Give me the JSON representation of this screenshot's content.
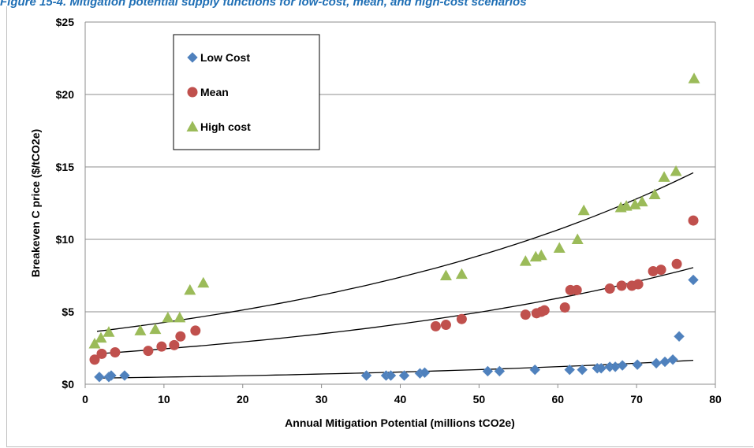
{
  "caption": "Figure 15-4. Mitigation potential supply functions for low-cost, mean, and high-cost scenarios",
  "chart_data": {
    "type": "scatter",
    "xlabel": "Annual Mitigation Potential (millions tCO2e)",
    "ylabel": "Breakeven C price ($/tCO2e)",
    "xlim": [
      0,
      80
    ],
    "ylim": [
      0,
      25
    ],
    "x_ticks": [
      "0",
      "10",
      "20",
      "30",
      "40",
      "50",
      "60",
      "70",
      "80"
    ],
    "y_ticks": [
      "$0",
      "$5",
      "$10",
      "$15",
      "$20",
      "$25"
    ],
    "grid": "horizontal",
    "legend_position": "top-left",
    "series": [
      {
        "name": "Low Cost",
        "marker": "diamond",
        "color": "#4f81bd",
        "x": [
          1.8,
          3.0,
          3.3,
          5.0,
          35.7,
          38.2,
          38.8,
          40.5,
          42.5,
          43.1,
          51.1,
          52.6,
          57.1,
          61.5,
          63.1,
          65.0,
          65.5,
          66.6,
          67.3,
          68.2,
          70.1,
          72.5,
          73.6,
          74.6,
          75.4,
          77.2
        ],
        "y": [
          0.5,
          0.5,
          0.6,
          0.6,
          0.6,
          0.6,
          0.6,
          0.6,
          0.75,
          0.8,
          0.9,
          0.9,
          1.0,
          1.0,
          1.0,
          1.1,
          1.1,
          1.2,
          1.2,
          1.3,
          1.35,
          1.45,
          1.55,
          1.7,
          3.3,
          7.2
        ]
      },
      {
        "name": "Mean",
        "marker": "circle",
        "color": "#c0504d",
        "x": [
          1.2,
          2.1,
          3.8,
          8.0,
          9.7,
          11.3,
          12.1,
          14.0,
          44.5,
          45.8,
          47.8,
          55.9,
          57.3,
          57.9,
          58.3,
          60.9,
          61.6,
          62.4,
          66.6,
          68.1,
          69.4,
          70.2,
          72.1,
          73.1,
          75.1,
          77.2
        ],
        "y": [
          1.7,
          2.1,
          2.2,
          2.3,
          2.6,
          2.7,
          3.3,
          3.7,
          4.0,
          4.1,
          4.5,
          4.8,
          4.9,
          5.0,
          5.1,
          5.3,
          6.5,
          6.5,
          6.6,
          6.8,
          6.8,
          6.9,
          7.8,
          7.9,
          8.3,
          11.3
        ]
      },
      {
        "name": "High cost",
        "marker": "triangle",
        "color": "#9bbb59",
        "x": [
          1.2,
          2.0,
          3.0,
          7.0,
          8.9,
          10.5,
          12.0,
          13.3,
          15.0,
          45.8,
          47.8,
          55.9,
          57.2,
          57.9,
          60.2,
          62.5,
          63.3,
          68.0,
          68.7,
          69.8,
          70.7,
          72.3,
          73.5,
          75.0,
          77.3
        ],
        "y": [
          2.8,
          3.2,
          3.6,
          3.7,
          3.8,
          4.6,
          4.6,
          6.5,
          7.0,
          7.5,
          7.6,
          8.5,
          8.8,
          8.9,
          9.4,
          10.0,
          12.0,
          12.2,
          12.3,
          12.4,
          12.6,
          13.1,
          14.3,
          14.7,
          21.1
        ]
      }
    ],
    "trendlines": [
      {
        "series": "Low Cost",
        "type": "exponential",
        "x": [
          1.5,
          77.2
        ],
        "y": [
          0.42,
          1.65
        ]
      },
      {
        "series": "Mean",
        "type": "exponential",
        "x": [
          1.5,
          77.2
        ],
        "y": [
          2.1,
          8.05
        ]
      },
      {
        "series": "High cost",
        "type": "exponential",
        "x": [
          1.5,
          77.2
        ],
        "y": [
          3.65,
          14.6
        ]
      }
    ]
  }
}
